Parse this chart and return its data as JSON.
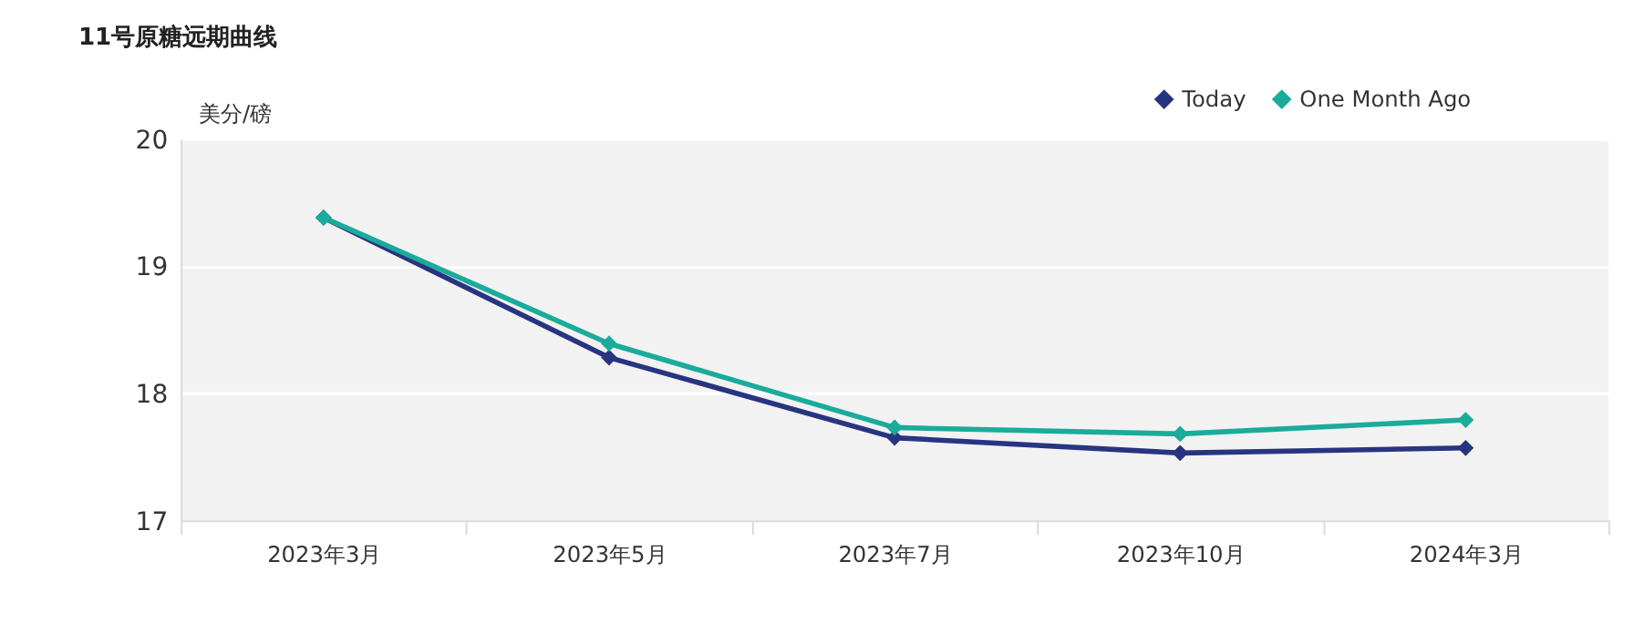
{
  "chart_data": {
    "type": "line",
    "title": "11号原糖远期曲线",
    "ylabel": "美分/磅",
    "categories": [
      "2023年3月",
      "2023年5月",
      "2023年7月",
      "2023年10月",
      "2024年3月"
    ],
    "series": [
      {
        "name": "Today",
        "color": "#283480",
        "values": [
          19.38,
          18.28,
          17.65,
          17.53,
          17.57
        ]
      },
      {
        "name": "One Month Ago",
        "color": "#1aab9b",
        "values": [
          19.38,
          18.39,
          17.73,
          17.68,
          17.79
        ]
      }
    ],
    "ylim": [
      17,
      20
    ],
    "yticks": [
      17,
      18,
      19,
      20
    ],
    "grid": "y",
    "legend": "top right",
    "marker": "diamond",
    "line_style": "solid"
  }
}
